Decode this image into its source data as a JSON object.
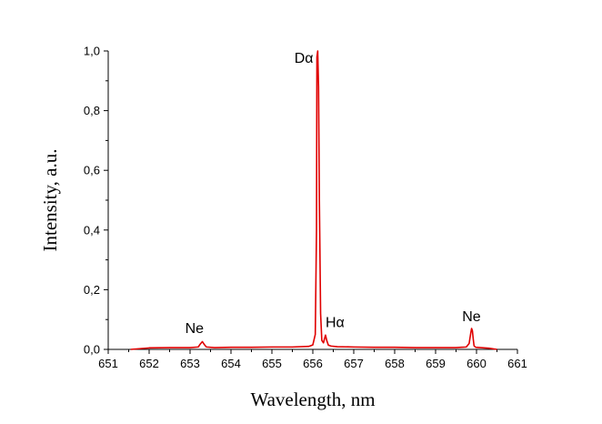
{
  "chart_data": {
    "type": "line",
    "title": "",
    "xlabel": "Wavelength, nm",
    "ylabel": "Intensity, a.u.",
    "xlim": [
      651,
      661
    ],
    "ylim": [
      0,
      1.0
    ],
    "x_ticks": [
      651,
      652,
      653,
      654,
      655,
      656,
      657,
      658,
      659,
      660,
      661
    ],
    "x_tick_labels": [
      "651",
      "652",
      "653",
      "654",
      "655",
      "656",
      "657",
      "658",
      "659",
      "660",
      "661"
    ],
    "y_ticks": [
      0,
      0.2,
      0.4,
      0.6,
      0.8,
      1.0
    ],
    "y_tick_labels": [
      "0,0",
      "0,2",
      "0,4",
      "0,6",
      "0,8",
      "1,0"
    ],
    "grid": false,
    "line_color": "#e00000",
    "series": [
      {
        "x": [
          651.55,
          652.0,
          652.5,
          653.0,
          653.2,
          653.25,
          653.3,
          653.35,
          653.4,
          653.6,
          654.0,
          654.5,
          655.0,
          655.5,
          655.9,
          656.0,
          656.06,
          656.09,
          656.1,
          656.12,
          656.14,
          656.16,
          656.19,
          656.22,
          656.26,
          656.29,
          656.31,
          656.34,
          656.38,
          656.45,
          656.6,
          657.0,
          657.5,
          658.0,
          658.5,
          659.0,
          659.5,
          659.75,
          659.82,
          659.86,
          659.88,
          659.9,
          659.92,
          659.94,
          659.98,
          660.1,
          660.3,
          660.5
        ],
        "y": [
          0.0,
          0.005,
          0.006,
          0.006,
          0.008,
          0.018,
          0.026,
          0.016,
          0.008,
          0.006,
          0.007,
          0.007,
          0.008,
          0.008,
          0.01,
          0.015,
          0.05,
          0.4,
          0.98,
          1.0,
          0.88,
          0.5,
          0.12,
          0.03,
          0.022,
          0.038,
          0.048,
          0.03,
          0.014,
          0.011,
          0.009,
          0.008,
          0.007,
          0.007,
          0.006,
          0.006,
          0.006,
          0.008,
          0.02,
          0.055,
          0.07,
          0.062,
          0.035,
          0.012,
          0.007,
          0.006,
          0.004,
          0.0
        ]
      }
    ],
    "annotations": [
      {
        "text": "Dα",
        "x": 655.55,
        "y": 0.96
      },
      {
        "text": "Hα",
        "x": 656.31,
        "y": 0.075
      },
      {
        "text": "Ne",
        "x": 652.88,
        "y": 0.055
      },
      {
        "text": "Ne",
        "x": 659.65,
        "y": 0.095
      }
    ]
  }
}
